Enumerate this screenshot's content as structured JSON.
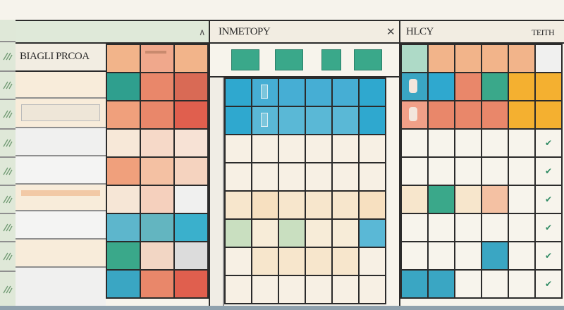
{
  "left_panel": {
    "title": "BIAGLI PRCOA",
    "header_icon": "chevron-icon",
    "cell_colors": [
      [
        "#f2b48a",
        "#f0a88c",
        "#f2b48a"
      ],
      [
        "#2f9f8e",
        "#e9876a",
        "#d96a55"
      ],
      [
        "#f0a07c",
        "#e9876a",
        "#e05f4e"
      ],
      [
        "#f7e8d8",
        "#f6d9c8",
        "#f7e2d5"
      ],
      [
        "#f0a07c",
        "#f4c1a3",
        "#f5d3bf"
      ],
      [
        "#f6e6d6",
        "#f5d0bd",
        "#f0f0ef"
      ],
      [
        "#5db6cc",
        "#63b5c0",
        "#3ab0cc"
      ],
      [
        "#3aa88a",
        "#f2d6c4",
        "#dcdcdc"
      ],
      [
        "#3aa6c3",
        "#e9876a",
        "#e05f4e"
      ]
    ]
  },
  "middle_panel": {
    "title": "INMETOPY",
    "close_icon": "close-icon",
    "header_tab_colors": [
      "#3aa88a",
      "#3aa88a",
      "#3aa88a",
      "#3aa88a"
    ],
    "cell_colors": [
      [
        "#2fa8cf",
        "#46aed4",
        "#46aed4",
        "#46aed4",
        "#46aed4",
        "#2fa8cf"
      ],
      [
        "#2fa8cf",
        "#5ab8d6",
        "#5ab8d6",
        "#5ab8d6",
        "#5ab8d6",
        "#2fa8cf"
      ],
      [
        "#f7f0e4",
        "#f7f0e4",
        "#f7f0e4",
        "#f7f0e4",
        "#f7f0e4",
        "#f7f0e4"
      ],
      [
        "#f7f0e4",
        "#f7f0e4",
        "#f7f0e4",
        "#f7f0e4",
        "#f7f0e4",
        "#f7f0e4"
      ],
      [
        "#f7e6cc",
        "#f7e0c0",
        "#f7e6cc",
        "#f7e6cc",
        "#f7e6cc",
        "#f7e0c0"
      ],
      [
        "#c9dfc0",
        "#f7ecd8",
        "#c9dfc0",
        "#f7ecd8",
        "#f7ecd8",
        "#5ab8d6"
      ],
      [
        "#f7f0e4",
        "#f7e6cc",
        "#f7e6cc",
        "#f7e6cc",
        "#f7e6cc",
        "#f7f0e4"
      ],
      [
        "#f7f0e4",
        "#f7f0e4",
        "#f7f0e4",
        "#f7f0e4",
        "#f7f0e4",
        "#f7f0e4"
      ]
    ]
  },
  "right_panel": {
    "title": "HLCY",
    "title_right": "TEITH",
    "check_icon": "check-icon",
    "cell_colors": [
      [
        "#aedac7",
        "#f2b48a",
        "#f2b48a",
        "#f2b48a",
        "#f2b48a",
        "#f0f0ef"
      ],
      [
        "#3aa6c3",
        "#2fa8cf",
        "#e9876a",
        "#3aa88a",
        "#f4b030",
        "#f4b030"
      ],
      [
        "#f0a088",
        "#e9876a",
        "#e9876a",
        "#e9876a",
        "#f4b030",
        "#f4b030"
      ],
      [
        "#f7f4ec",
        "#f7f4ec",
        "#f7f4ec",
        "#f7f4ec",
        "#f7f4ec",
        "#f7f4ec"
      ],
      [
        "#f7f4ec",
        "#f7f4ec",
        "#f7f4ec",
        "#f7f4ec",
        "#f7f4ec",
        "#f7f4ec"
      ],
      [
        "#f7e6cc",
        "#3aa88a",
        "#f7e6cc",
        "#f4c1a3",
        "#f7f4ec",
        "#f7f4ec"
      ],
      [
        "#f7f4ec",
        "#f7f4ec",
        "#f7f4ec",
        "#f7f4ec",
        "#f7f4ec",
        "#f7f4ec"
      ],
      [
        "#f7f4ec",
        "#f7f4ec",
        "#f7f4ec",
        "#3aa6c3",
        "#f7f4ec",
        "#f7f4ec"
      ],
      [
        "#3aa6c3",
        "#3aa6c3",
        "#f7f4ec",
        "#f7f4ec",
        "#f7f4ec",
        "#f7f4ec"
      ]
    ]
  },
  "colors": {
    "header_green": "#dfe9d9",
    "header_cream": "#f2ede2",
    "sidebar_green": "#dfe8d8"
  }
}
